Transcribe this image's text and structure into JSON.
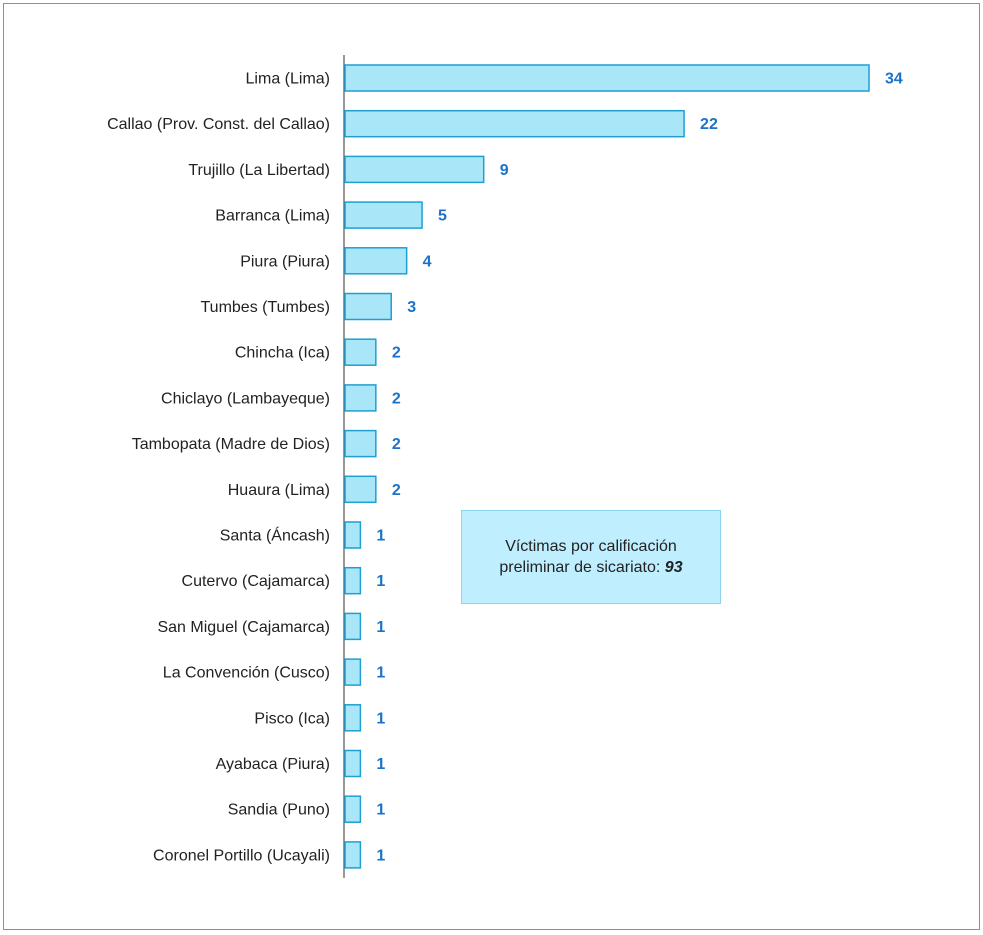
{
  "chart_data": {
    "type": "bar",
    "orientation": "horizontal",
    "categories": [
      "Lima (Lima)",
      "Callao (Prov. Const. del Callao)",
      "Trujillo (La Libertad)",
      "Barranca (Lima)",
      "Piura (Piura)",
      "Tumbes (Tumbes)",
      "Chincha (Ica)",
      "Chiclayo (Lambayeque)",
      "Tambopata (Madre de Dios)",
      "Huaura (Lima)",
      "Santa (Áncash)",
      "Cutervo (Cajamarca)",
      "San Miguel (Cajamarca)",
      "La Convención (Cusco)",
      "Pisco (Ica)",
      "Ayabaca (Piura)",
      "Sandia (Puno)",
      "Coronel Portillo (Ucayali)"
    ],
    "values": [
      34,
      22,
      9,
      5,
      4,
      3,
      2,
      2,
      2,
      2,
      1,
      1,
      1,
      1,
      1,
      1,
      1,
      1
    ],
    "title": "",
    "xlabel": "",
    "ylabel": "",
    "grid": false,
    "bar_color": "#a8e6f8",
    "bar_border_color": "#1f9fd3",
    "value_label_color": "#1a73c9"
  },
  "note": {
    "line1": "Víctimas por calificación",
    "line2": "preliminar de sicariato:",
    "total": "93"
  }
}
